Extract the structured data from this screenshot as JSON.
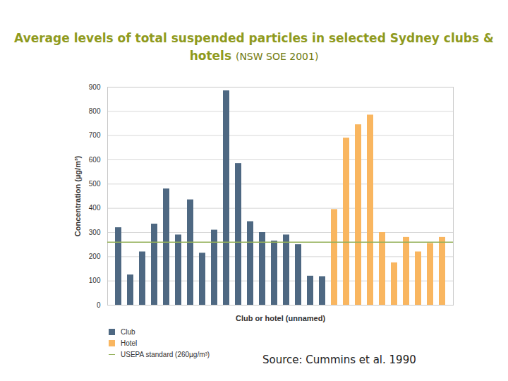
{
  "chart_data": {
    "type": "bar",
    "title": "Average levels of total suspended particles in selected Sydney clubs & hotels",
    "subtitle": "(NSW SOE 2001)",
    "x_label": "Club or hotel (unnamed)",
    "y_label": "Concentration (µg/m³)",
    "annotations": [
      "Source: Cummins et al. 1990"
    ],
    "categories": [
      null,
      null,
      null,
      null,
      null,
      null,
      null,
      null,
      null,
      null,
      null,
      null,
      null,
      null,
      null,
      null,
      null,
      null,
      null,
      null,
      null,
      null,
      null,
      null,
      null,
      null,
      null,
      null
    ],
    "series": [
      {
        "name": "Club",
        "type": "bar",
        "color": "#4e6882",
        "values": [
          320,
          125,
          220,
          335,
          480,
          290,
          435,
          215,
          310,
          885,
          585,
          345,
          300,
          265,
          290,
          250,
          120,
          118,
          null,
          null,
          null,
          null,
          null,
          null,
          null,
          null,
          null,
          null
        ]
      },
      {
        "name": "Hotel",
        "type": "bar",
        "color": "#f9b660",
        "values": [
          null,
          null,
          null,
          null,
          null,
          null,
          null,
          null,
          null,
          null,
          null,
          null,
          null,
          null,
          null,
          null,
          null,
          null,
          395,
          690,
          745,
          785,
          300,
          175,
          280,
          220,
          255,
          280
        ]
      },
      {
        "name": "USEPA standard (260µg/m³)",
        "type": "line",
        "color": "#93b058",
        "y": 260
      }
    ],
    "ylim": [
      0,
      900
    ],
    "yticks": [
      0,
      100,
      200,
      300,
      400,
      500,
      600,
      700,
      800,
      900
    ],
    "grid": true,
    "legend": "bottom",
    "tick_labels": "y",
    "data_labels": false
  }
}
